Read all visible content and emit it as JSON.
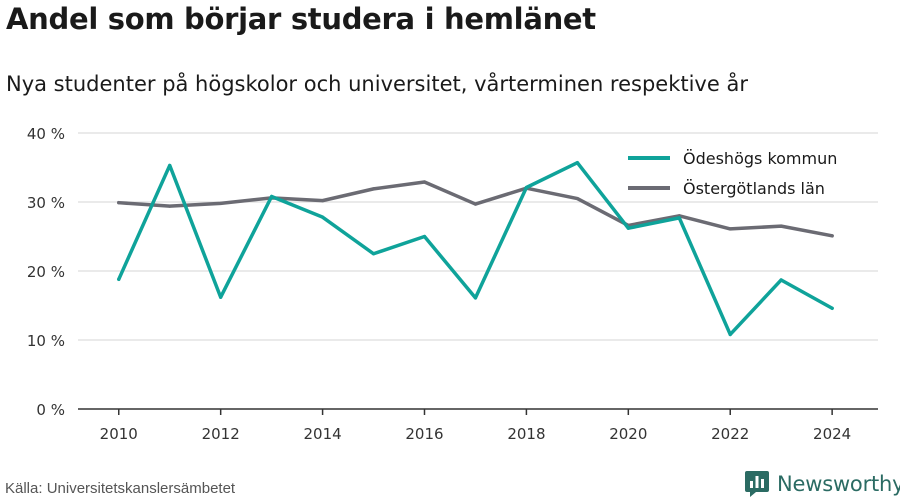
{
  "header": {
    "title": "Andel som börjar studera i hemlänet",
    "subtitle": "Nya studenter på högskolor och universitet, vårterminen respektive år"
  },
  "footer": {
    "source": "Källa: Universitetskanslersämbetet",
    "brand": "Newsworthy"
  },
  "colors": {
    "series_1": "#0fa39a",
    "series_2": "#6b6b73",
    "grid": "#dddddd",
    "axis": "#333333",
    "brand": "#2b6b63"
  },
  "chart_data": {
    "type": "line",
    "x": [
      2010,
      2011,
      2012,
      2013,
      2014,
      2015,
      2016,
      2017,
      2018,
      2019,
      2020,
      2021,
      2022,
      2023,
      2024
    ],
    "series": [
      {
        "name": "Ödeshögs kommun",
        "color": "#0fa39a",
        "values": [
          18.8,
          35.3,
          16.2,
          30.8,
          27.8,
          22.5,
          25.0,
          16.1,
          32.1,
          35.7,
          26.2,
          27.7,
          10.8,
          18.7,
          14.6
        ]
      },
      {
        "name": "Östergötlands län",
        "color": "#6b6b73",
        "values": [
          29.9,
          29.4,
          29.8,
          30.6,
          30.2,
          31.9,
          32.9,
          29.7,
          32.0,
          30.5,
          26.6,
          28.0,
          26.1,
          26.5,
          25.1
        ]
      }
    ],
    "y_ticks": [
      "0 %",
      "10 %",
      "20 %",
      "30 %",
      "40 %"
    ],
    "x_ticks": [
      "2010",
      "2012",
      "2014",
      "2016",
      "2018",
      "2020",
      "2022",
      "2024"
    ],
    "ylim": [
      0,
      40
    ],
    "xlim": [
      2009.2,
      2024.9
    ],
    "grid": "horizontal",
    "legend_position": "top-right"
  }
}
